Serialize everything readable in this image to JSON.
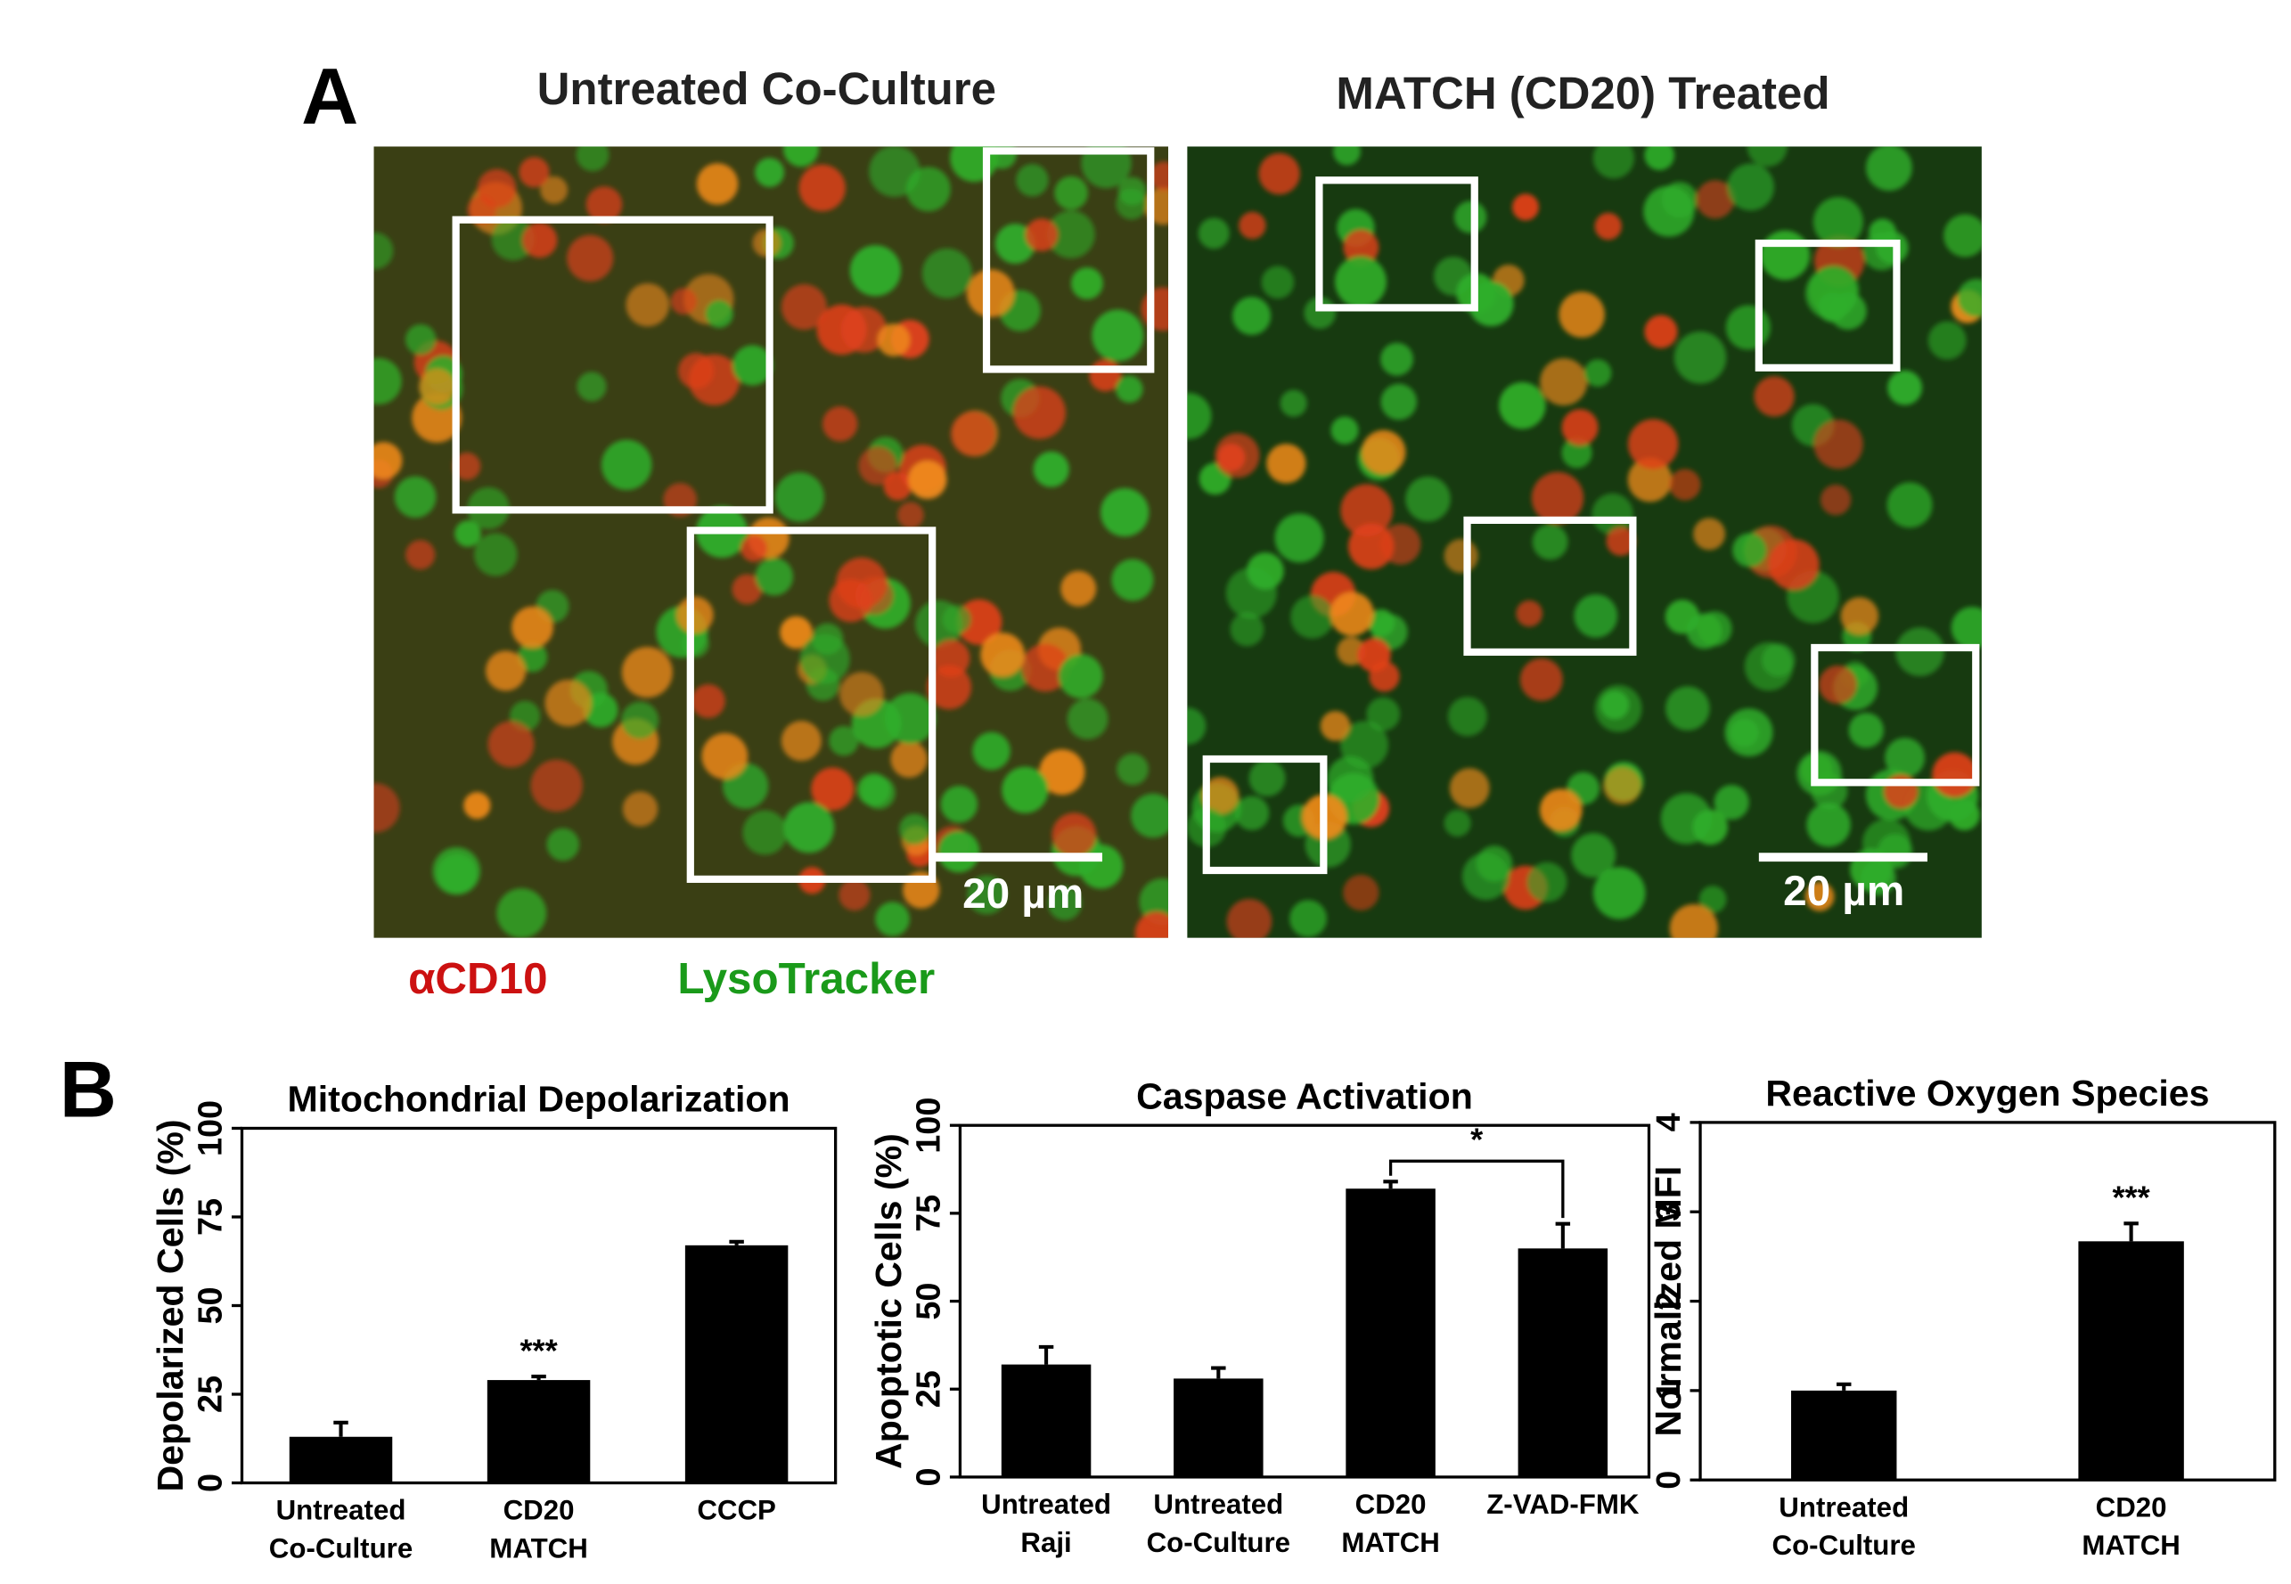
{
  "panel_a": {
    "label": "A",
    "images": [
      {
        "title": "Untreated Co-Culture",
        "scale_bar": "20 µm"
      },
      {
        "title": "MATCH (CD20) Treated",
        "scale_bar": "20 µm"
      }
    ],
    "stains": [
      {
        "name": "αCD10",
        "color": "#cc1111"
      },
      {
        "name": "LysoTracker",
        "color": "#1a9a1a"
      }
    ]
  },
  "panel_b": {
    "label": "B"
  },
  "chart_data": [
    {
      "type": "bar",
      "title": "Mitochondrial Depolarization",
      "ylabel": "Depolarized Cells (%)",
      "categories": [
        [
          "Untreated",
          "Co-Culture"
        ],
        [
          "CD20",
          "MATCH"
        ],
        [
          "CCCP"
        ]
      ],
      "series": [
        {
          "color": "#000000",
          "values": [
            13,
            29,
            67
          ],
          "errors": [
            4,
            1,
            1
          ],
          "value_annotations": [
            null,
            "***",
            null
          ]
        }
      ],
      "ylim": [
        0,
        100
      ],
      "yticks": [
        0,
        25,
        50,
        75,
        100
      ]
    },
    {
      "type": "bar",
      "title": "Caspase Activation",
      "ylabel": "Apoptotic Cells (%)",
      "categories": [
        [
          "Untreated",
          "Raji"
        ],
        [
          "Untreated",
          "Co-Culture"
        ],
        [
          "CD20",
          "MATCH"
        ],
        [
          "Z-VAD-FMK"
        ]
      ],
      "series": [
        {
          "color": "#000000",
          "values": [
            32,
            28,
            82,
            65
          ],
          "errors": [
            5,
            3,
            2,
            7
          ]
        }
      ],
      "comparisons": [
        {
          "from": 2,
          "to": 3,
          "text": "*"
        }
      ],
      "ylim": [
        0,
        100
      ],
      "yticks": [
        0,
        25,
        50,
        75,
        100
      ]
    },
    {
      "type": "bar",
      "title": "Reactive Oxygen Species",
      "ylabel": "Normalized MFI",
      "categories": [
        [
          "Untreated",
          "Co-Culture"
        ],
        [
          "CD20",
          "MATCH"
        ]
      ],
      "series": [
        {
          "color": "#000000",
          "values": [
            1.0,
            2.67
          ],
          "errors": [
            0.07,
            0.2
          ],
          "value_annotations": [
            null,
            "***"
          ]
        }
      ],
      "ylim": [
        0,
        4
      ],
      "yticks": [
        0,
        1,
        2,
        3,
        4
      ]
    }
  ]
}
